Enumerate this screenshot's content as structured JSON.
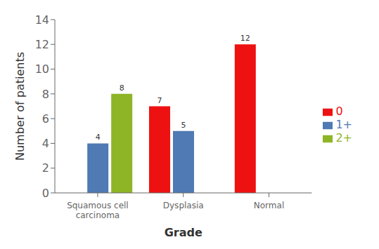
{
  "chart_data": {
    "type": "bar",
    "categories": [
      "Squamous cell\ncarcinoma",
      "Dysplasia",
      "Normal"
    ],
    "series": [
      {
        "name": "0",
        "color": "#ee1111",
        "values": [
          0,
          7,
          12
        ]
      },
      {
        "name": "1+",
        "color": "#4f7ab3",
        "values": [
          4,
          5,
          0
        ]
      },
      {
        "name": "2+",
        "color": "#8db526",
        "values": [
          8,
          0,
          0
        ]
      }
    ],
    "xlabel": "Grade",
    "ylabel": "Number of patients",
    "ylim": [
      0,
      14
    ],
    "yticks": [
      0,
      2,
      4,
      6,
      8,
      10,
      12,
      14
    ],
    "grid": false,
    "legend": "right",
    "data_labels": true
  }
}
